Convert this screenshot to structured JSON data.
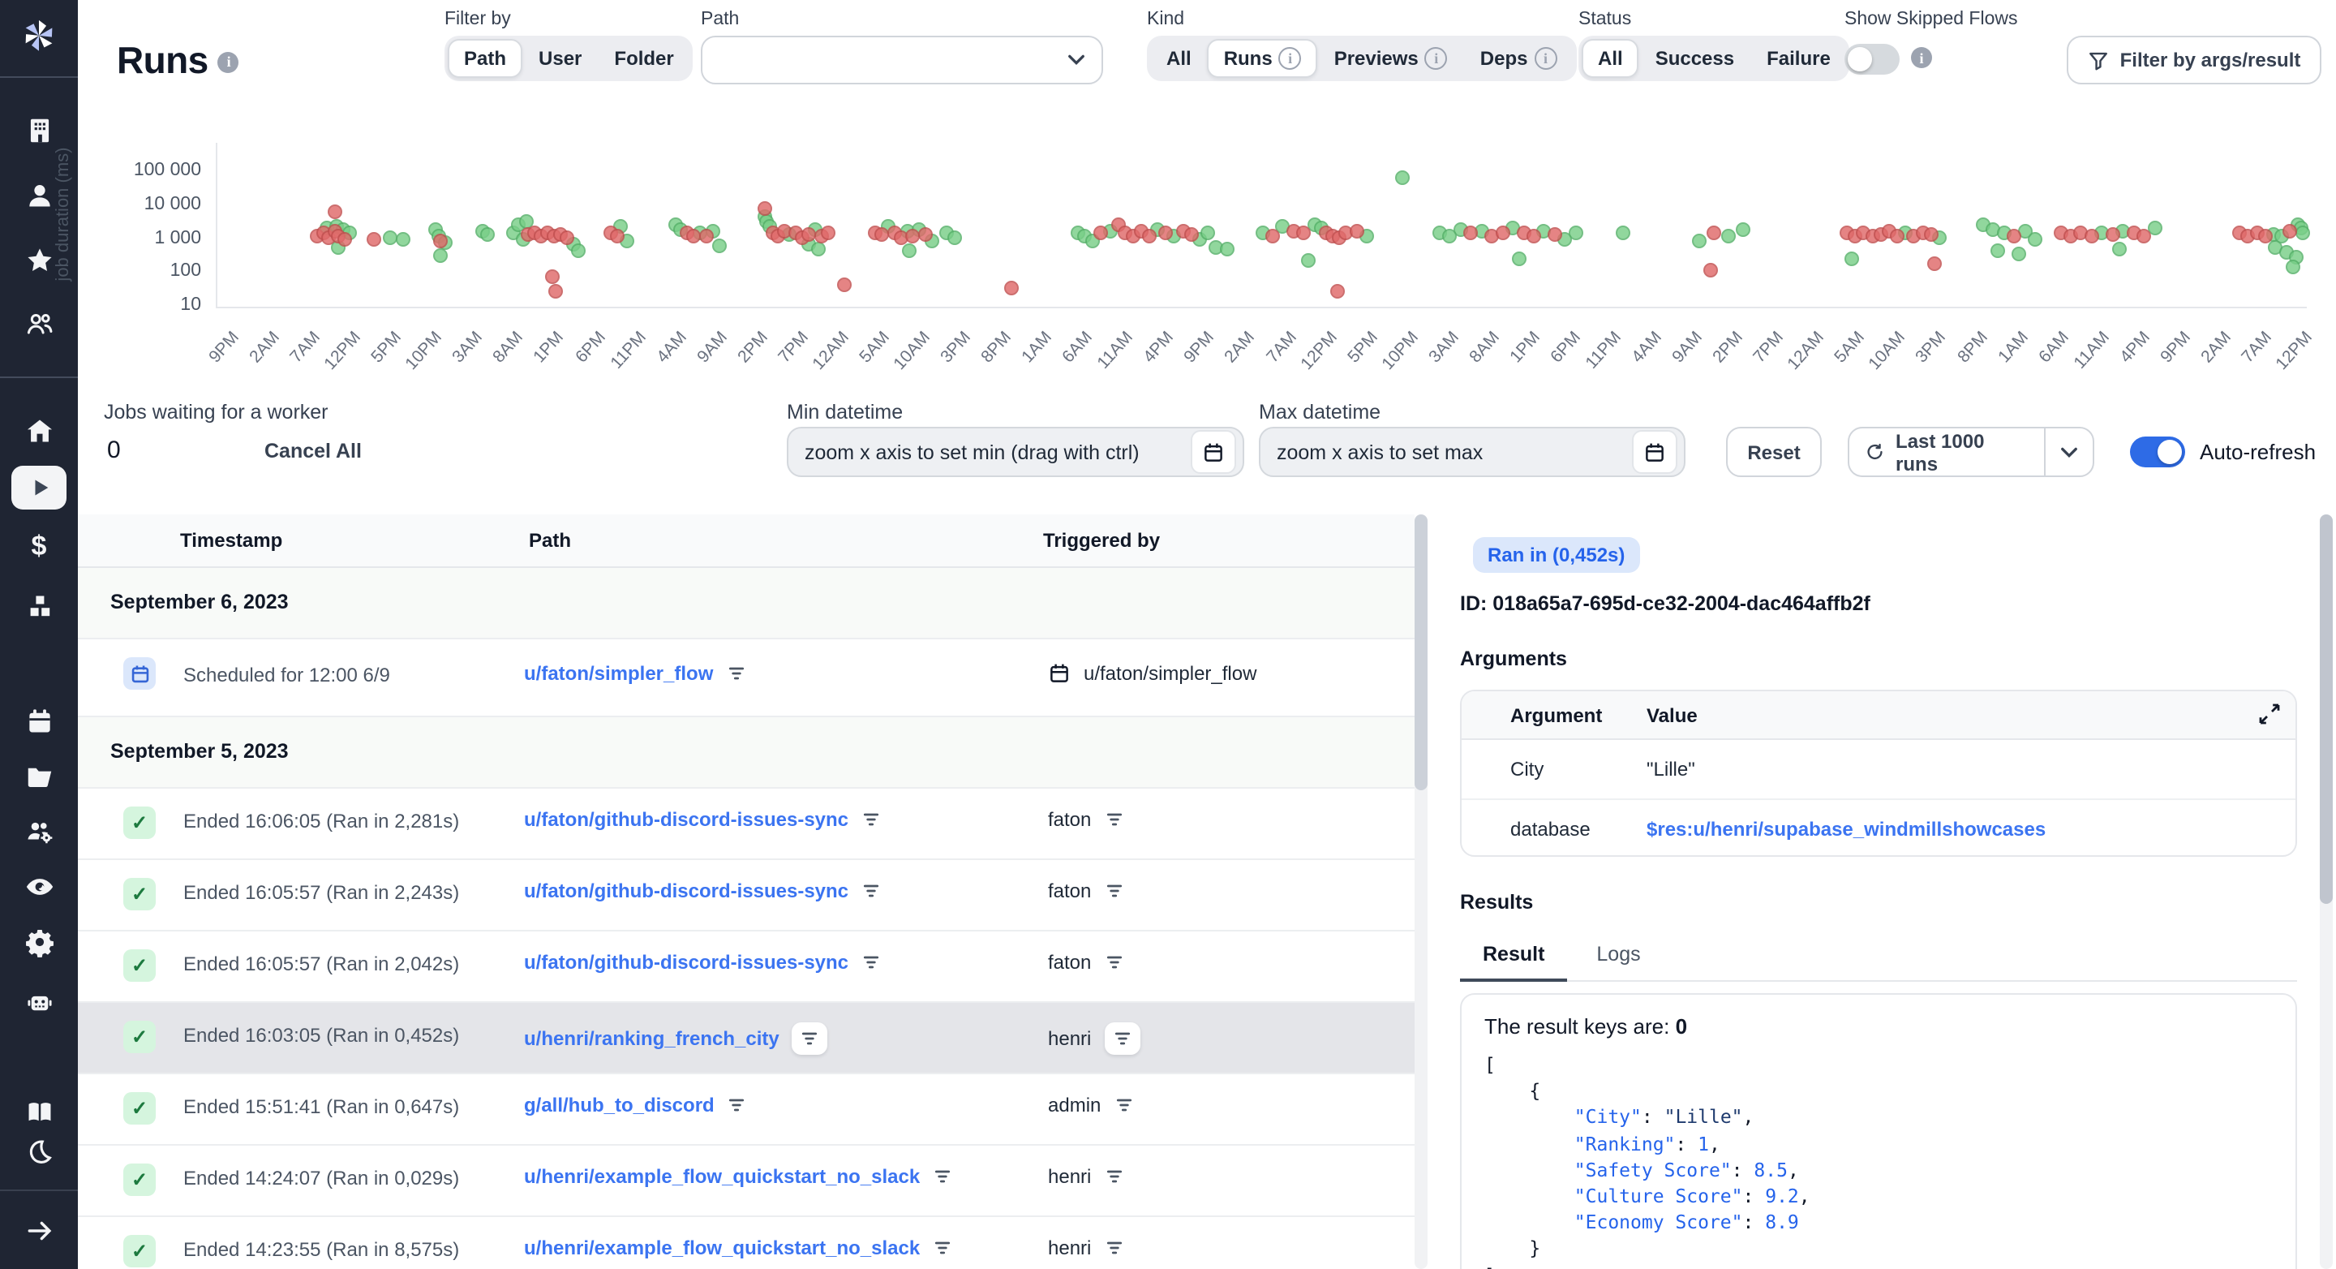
{
  "header": {
    "title": "Runs",
    "filter_by": {
      "label": "Filter by",
      "options": [
        "Path",
        "User",
        "Folder"
      ],
      "selected": "Path"
    },
    "path_filter": {
      "label": "Path",
      "value": ""
    },
    "kind": {
      "label": "Kind",
      "options": [
        "All",
        "Runs",
        "Previews",
        "Deps"
      ],
      "selected": "Runs",
      "info_options": [
        "Runs",
        "Previews",
        "Deps"
      ]
    },
    "status": {
      "label": "Status",
      "options": [
        "All",
        "Success",
        "Failure"
      ],
      "selected": "All"
    },
    "skipped_flows": {
      "label": "Show Skipped Flows",
      "enabled": false
    },
    "args_filter_button": "Filter by args/result"
  },
  "chart_data": {
    "type": "scatter",
    "title": "",
    "xlabel": "",
    "ylabel": "job duration (ms)",
    "yscale": "log",
    "ylim": [
      10,
      100000
    ],
    "yticks": [
      10,
      100,
      1000,
      10000,
      100000
    ],
    "ytick_labels": [
      "10",
      "100",
      "1 000",
      "10 000",
      "100 000"
    ],
    "x_unit": "fraction of visible time range",
    "xtick_labels": [
      "9PM",
      "2AM",
      "7AM",
      "12PM",
      "5PM",
      "10PM",
      "3AM",
      "8AM",
      "1PM",
      "6PM",
      "11PM",
      "4AM",
      "9AM",
      "2PM",
      "7PM",
      "12AM",
      "5AM",
      "10AM",
      "3PM",
      "8PM",
      "1AM",
      "6AM",
      "11AM",
      "4PM",
      "9PM",
      "2AM",
      "7AM",
      "12PM",
      "5PM",
      "10PM",
      "3AM",
      "8AM",
      "1PM",
      "6PM",
      "11PM",
      "4AM",
      "9AM",
      "2PM",
      "7PM",
      "12AM",
      "5AM",
      "10AM",
      "3PM",
      "8PM",
      "1AM",
      "6AM",
      "11AM",
      "4PM",
      "9PM",
      "2AM",
      "7AM",
      "12PM"
    ],
    "series": [
      {
        "name": "success",
        "color": "#79cf88",
        "border": "#55b068",
        "points": [
          [
            0.052,
            2200
          ],
          [
            0.057,
            2500
          ],
          [
            0.06,
            1900
          ],
          [
            0.063,
            1500
          ],
          [
            0.058,
            550
          ],
          [
            0.083,
            1150
          ],
          [
            0.089,
            1050
          ],
          [
            0.104,
            1900
          ],
          [
            0.106,
            1250
          ],
          [
            0.109,
            800
          ],
          [
            0.107,
            320
          ],
          [
            0.127,
            1800
          ],
          [
            0.129,
            1400
          ],
          [
            0.142,
            1600
          ],
          [
            0.144,
            2600
          ],
          [
            0.146,
            1000
          ],
          [
            0.148,
            3600
          ],
          [
            0.17,
            750
          ],
          [
            0.173,
            480
          ],
          [
            0.193,
            2400
          ],
          [
            0.196,
            950
          ],
          [
            0.219,
            2600
          ],
          [
            0.222,
            1900
          ],
          [
            0.231,
            1550
          ],
          [
            0.237,
            1850
          ],
          [
            0.24,
            620
          ],
          [
            0.262,
            4500
          ],
          [
            0.263,
            3300
          ],
          [
            0.264,
            2500
          ],
          [
            0.274,
            1350
          ],
          [
            0.286,
            2000
          ],
          [
            0.283,
            750
          ],
          [
            0.288,
            520
          ],
          [
            0.321,
            2500
          ],
          [
            0.33,
            1750
          ],
          [
            0.336,
            2000
          ],
          [
            0.342,
            950
          ],
          [
            0.331,
            480
          ],
          [
            0.349,
            1600
          ],
          [
            0.353,
            1100
          ],
          [
            0.412,
            1500
          ],
          [
            0.415,
            1200
          ],
          [
            0.419,
            900
          ],
          [
            0.427,
            1800
          ],
          [
            0.45,
            2000
          ],
          [
            0.458,
            1200
          ],
          [
            0.47,
            1000
          ],
          [
            0.474,
            1600
          ],
          [
            0.478,
            600
          ],
          [
            0.483,
            500
          ],
          [
            0.5,
            1500
          ],
          [
            0.51,
            2500
          ],
          [
            0.525,
            2800
          ],
          [
            0.528,
            2200
          ],
          [
            0.55,
            1300
          ],
          [
            0.522,
            250
          ],
          [
            0.567,
            65000
          ],
          [
            0.585,
            1500
          ],
          [
            0.59,
            1250
          ],
          [
            0.595,
            2000
          ],
          [
            0.605,
            1800
          ],
          [
            0.62,
            2300
          ],
          [
            0.635,
            1700
          ],
          [
            0.645,
            1000
          ],
          [
            0.65,
            1600
          ],
          [
            0.623,
            260
          ],
          [
            0.673,
            1500
          ],
          [
            0.709,
            900
          ],
          [
            0.723,
            1250
          ],
          [
            0.73,
            1900
          ],
          [
            0.808,
            1500
          ],
          [
            0.824,
            1100
          ],
          [
            0.782,
            280
          ],
          [
            0.845,
            2600
          ],
          [
            0.85,
            2000
          ],
          [
            0.855,
            1500
          ],
          [
            0.865,
            1800
          ],
          [
            0.87,
            1000
          ],
          [
            0.852,
            480
          ],
          [
            0.862,
            380
          ],
          [
            0.902,
            1500
          ],
          [
            0.912,
            1800
          ],
          [
            0.927,
            2200
          ],
          [
            0.91,
            500
          ],
          [
            0.984,
            1450
          ],
          [
            0.988,
            1200
          ],
          [
            0.996,
            2800
          ],
          [
            0.997,
            2100
          ],
          [
            0.998,
            1500
          ],
          [
            0.985,
            600
          ],
          [
            0.99,
            420
          ],
          [
            0.995,
            300
          ],
          [
            0.993,
            150
          ]
        ]
      },
      {
        "name": "failure",
        "color": "#e06a6a",
        "border": "#c14f4f",
        "points": [
          [
            0.048,
            1200
          ],
          [
            0.051,
            1500
          ],
          [
            0.053,
            1100
          ],
          [
            0.056,
            1700
          ],
          [
            0.056,
            6500
          ],
          [
            0.058,
            1300
          ],
          [
            0.061,
            1000
          ],
          [
            0.075,
            1000
          ],
          [
            0.107,
            950
          ],
          [
            0.149,
            1350
          ],
          [
            0.152,
            1650
          ],
          [
            0.155,
            1300
          ],
          [
            0.158,
            1550
          ],
          [
            0.161,
            1250
          ],
          [
            0.164,
            1450
          ],
          [
            0.167,
            1150
          ],
          [
            0.16,
            75
          ],
          [
            0.162,
            30
          ],
          [
            0.188,
            1500
          ],
          [
            0.191,
            1250
          ],
          [
            0.225,
            1500
          ],
          [
            0.228,
            1300
          ],
          [
            0.234,
            1250
          ],
          [
            0.262,
            8000
          ],
          [
            0.266,
            1500
          ],
          [
            0.268,
            1250
          ],
          [
            0.271,
            1800
          ],
          [
            0.277,
            1600
          ],
          [
            0.28,
            1150
          ],
          [
            0.283,
            1450
          ],
          [
            0.289,
            1250
          ],
          [
            0.292,
            1550
          ],
          [
            0.3,
            45
          ],
          [
            0.315,
            1600
          ],
          [
            0.318,
            1350
          ],
          [
            0.324,
            1500
          ],
          [
            0.327,
            1150
          ],
          [
            0.333,
            1300
          ],
          [
            0.339,
            1450
          ],
          [
            0.38,
            38
          ],
          [
            0.423,
            1500
          ],
          [
            0.431,
            2600
          ],
          [
            0.434,
            1500
          ],
          [
            0.438,
            1250
          ],
          [
            0.442,
            1700
          ],
          [
            0.446,
            1300
          ],
          [
            0.454,
            1500
          ],
          [
            0.462,
            1800
          ],
          [
            0.466,
            1400
          ],
          [
            0.505,
            1300
          ],
          [
            0.515,
            1800
          ],
          [
            0.52,
            1500
          ],
          [
            0.531,
            1500
          ],
          [
            0.534,
            1250
          ],
          [
            0.537,
            1100
          ],
          [
            0.54,
            1500
          ],
          [
            0.545,
            1700
          ],
          [
            0.536,
            30
          ],
          [
            0.6,
            1500
          ],
          [
            0.61,
            1300
          ],
          [
            0.615,
            1550
          ],
          [
            0.625,
            1500
          ],
          [
            0.63,
            1200
          ],
          [
            0.64,
            1400
          ],
          [
            0.716,
            1500
          ],
          [
            0.715,
            120
          ],
          [
            0.78,
            1500
          ],
          [
            0.784,
            1300
          ],
          [
            0.788,
            1600
          ],
          [
            0.792,
            1250
          ],
          [
            0.796,
            1450
          ],
          [
            0.8,
            1700
          ],
          [
            0.804,
            1300
          ],
          [
            0.812,
            1200
          ],
          [
            0.816,
            1600
          ],
          [
            0.82,
            1400
          ],
          [
            0.822,
            200
          ],
          [
            0.86,
            1300
          ],
          [
            0.882,
            1500
          ],
          [
            0.887,
            1300
          ],
          [
            0.892,
            1600
          ],
          [
            0.897,
            1250
          ],
          [
            0.907,
            1350
          ],
          [
            0.917,
            1500
          ],
          [
            0.922,
            1200
          ],
          [
            0.968,
            1500
          ],
          [
            0.972,
            1300
          ],
          [
            0.976,
            1600
          ],
          [
            0.98,
            1250
          ],
          [
            0.992,
            1700
          ]
        ]
      }
    ]
  },
  "controls": {
    "jobs_waiting_label": "Jobs waiting for a worker",
    "jobs_waiting_count": "0",
    "cancel_all": "Cancel All",
    "min_datetime": {
      "label": "Min datetime",
      "placeholder": "zoom x axis to set min (drag with ctrl)"
    },
    "max_datetime": {
      "label": "Max datetime",
      "placeholder": "zoom x axis to set max"
    },
    "reset": "Reset",
    "last_runs": "Last 1000 runs",
    "auto_refresh": {
      "label": "Auto-refresh",
      "enabled": true
    }
  },
  "table": {
    "columns": [
      "Timestamp",
      "Path",
      "Triggered by"
    ],
    "rows": [
      {
        "type": "date",
        "label": "September 6, 2023"
      },
      {
        "type": "scheduled",
        "timestamp": "Scheduled for 12:00 6/9",
        "path": "u/faton/simpler_flow",
        "triggered_by": "u/faton/simpler_flow"
      },
      {
        "type": "date",
        "label": "September 5, 2023"
      },
      {
        "type": "run",
        "selected": false,
        "timestamp": "Ended 16:06:05 (Ran in 2,281s)",
        "path": "u/faton/github-discord-issues-sync",
        "triggered_by": "faton"
      },
      {
        "type": "run",
        "selected": false,
        "timestamp": "Ended 16:05:57 (Ran in 2,243s)",
        "path": "u/faton/github-discord-issues-sync",
        "triggered_by": "faton"
      },
      {
        "type": "run",
        "selected": false,
        "timestamp": "Ended 16:05:57 (Ran in 2,042s)",
        "path": "u/faton/github-discord-issues-sync",
        "triggered_by": "faton"
      },
      {
        "type": "run",
        "selected": true,
        "timestamp": "Ended 16:03:05 (Ran in 0,452s)",
        "path": "u/henri/ranking_french_city",
        "triggered_by": "henri"
      },
      {
        "type": "run",
        "selected": false,
        "timestamp": "Ended 15:51:41 (Ran in 0,647s)",
        "path": "g/all/hub_to_discord",
        "triggered_by": "admin"
      },
      {
        "type": "run",
        "selected": false,
        "timestamp": "Ended 14:24:07 (Ran in 0,029s)",
        "path": "u/henri/example_flow_quickstart_no_slack",
        "triggered_by": "henri"
      },
      {
        "type": "run",
        "selected": false,
        "timestamp": "Ended 14:23:55 (Ran in 8,575s)",
        "path": "u/henri/example_flow_quickstart_no_slack",
        "triggered_by": "henri"
      }
    ]
  },
  "detail": {
    "ran_in_badge": "Ran in (0,452s)",
    "id_line": "ID: 018a65a7-695d-ce32-2004-dac464affb2f",
    "arguments_label": "Arguments",
    "args_table": {
      "columns": [
        "Argument",
        "Value"
      ],
      "rows": [
        {
          "name": "City",
          "value": "\"Lille\"",
          "link": false
        },
        {
          "name": "database",
          "value": "$res:u/henri/supabase_windmillshowcases",
          "link": true
        }
      ]
    },
    "results_label": "Results",
    "tabs": [
      "Result",
      "Logs"
    ],
    "active_tab": "Result",
    "result_intro": "The result keys are: ",
    "result_intro_bold": "0",
    "json_lines": [
      {
        "plain": "["
      },
      {
        "plain": "    {"
      },
      {
        "indent": "        ",
        "key": "City",
        "value": "\"Lille\"",
        "kind": "str",
        "comma": true
      },
      {
        "indent": "        ",
        "key": "Ranking",
        "value": "1",
        "kind": "num",
        "comma": true
      },
      {
        "indent": "        ",
        "key": "Safety Score",
        "value": "8.5",
        "kind": "num",
        "comma": true
      },
      {
        "indent": "        ",
        "key": "Culture Score",
        "value": "9.2",
        "kind": "num",
        "comma": true
      },
      {
        "indent": "        ",
        "key": "Economy Score",
        "value": "8.9",
        "kind": "num",
        "comma": false
      },
      {
        "plain": "    }"
      },
      {
        "plain": "]"
      }
    ]
  },
  "colors": {
    "accent_blue": "#3b74f1",
    "toggle_on": "#2e6be6",
    "success_dot": "#79cf88",
    "failure_dot": "#e06a6a",
    "sidebar_bg": "#1f2533"
  }
}
